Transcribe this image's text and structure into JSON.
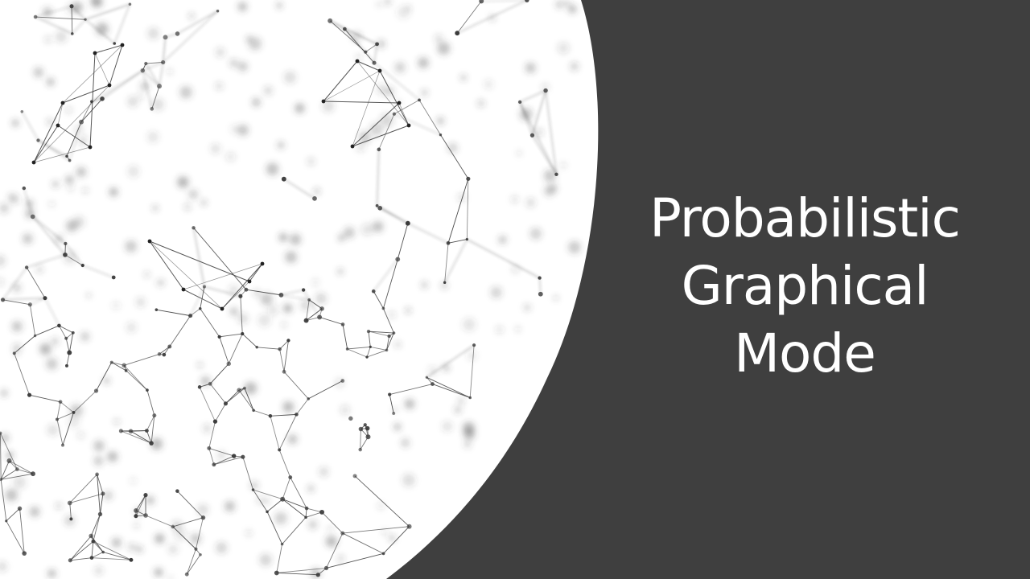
{
  "slide": {
    "title_lines": [
      "Probabilistic",
      "Graphical",
      "Mode"
    ],
    "colors": {
      "background": "#ffffff",
      "panel": "#3f3f3f",
      "title_text": "#ffffff",
      "network": "#3a3a3a"
    },
    "background_image": "abstract-network-graph"
  }
}
